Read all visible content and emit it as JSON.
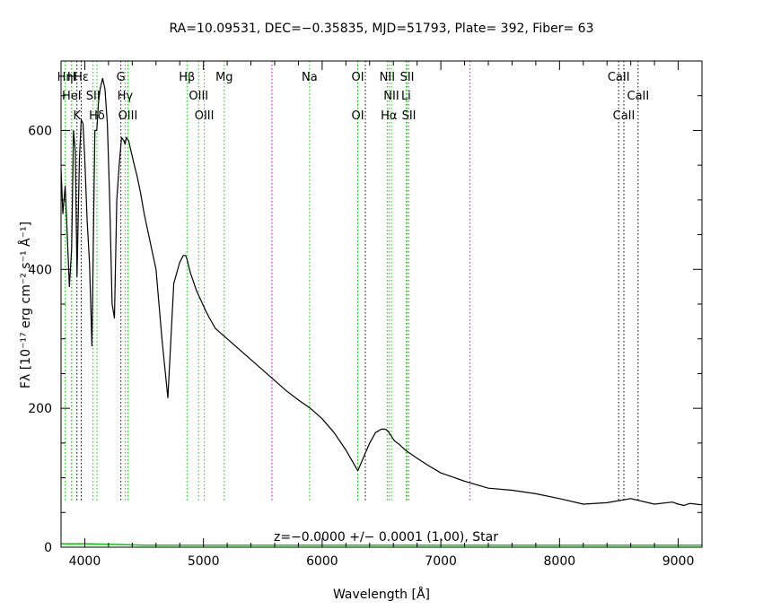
{
  "chart_data": {
    "type": "line",
    "title": "RA=10.09531, DEC=−0.35835, MJD=51793, Plate=  392, Fiber=  63",
    "xlabel": "Wavelength [Å]",
    "ylabel": "Fλ [10⁻¹⁷ erg cm⁻² s⁻¹ Å⁻¹]",
    "xlim": [
      3800,
      9200
    ],
    "ylim": [
      0,
      700
    ],
    "xticks": [
      4000,
      5000,
      6000,
      7000,
      8000,
      9000
    ],
    "yticks": [
      0,
      200,
      400,
      600
    ],
    "annotation": "z=−0.0000 +/− 0.0001 (1.00), Star",
    "series": [
      {
        "color": "#000000",
        "x": [
          3800,
          3815,
          3835,
          3850,
          3870,
          3889,
          3905,
          3920,
          3935,
          3955,
          3970,
          3985,
          4000,
          4020,
          4040,
          4060,
          4085,
          4101,
          4115,
          4130,
          4150,
          4170,
          4190,
          4210,
          4230,
          4250,
          4270,
          4290,
          4310,
          4330,
          4340,
          4350,
          4370,
          4390,
          4410,
          4440,
          4470,
          4500,
          4550,
          4600,
          4650,
          4700,
          4750,
          4800,
          4830,
          4850,
          4861,
          4875,
          4890,
          4910,
          4940,
          4980,
          5020,
          5050,
          5100,
          5200,
          5300,
          5400,
          5500,
          5600,
          5700,
          5800,
          5900,
          6000,
          6100,
          6200,
          6300,
          6400,
          6450,
          6500,
          6530,
          6550,
          6563,
          6575,
          6590,
          6610,
          6650,
          6700,
          6800,
          6900,
          7000,
          7200,
          7400,
          7600,
          7800,
          8000,
          8200,
          8400,
          8600,
          8800,
          8950,
          9000,
          9050,
          9080,
          9100,
          9150,
          9200
        ],
        "y": [
          545,
          480,
          520,
          460,
          375,
          430,
          600,
          570,
          390,
          560,
          615,
          610,
          560,
          470,
          410,
          290,
          600,
          600,
          640,
          660,
          675,
          660,
          610,
          500,
          350,
          330,
          500,
          550,
          590,
          585,
          580,
          590,
          585,
          570,
          555,
          535,
          510,
          480,
          440,
          400,
          300,
          215,
          380,
          410,
          420,
          420,
          415,
          405,
          395,
          385,
          370,
          355,
          340,
          330,
          315,
          300,
          285,
          270,
          255,
          240,
          225,
          212,
          200,
          185,
          165,
          140,
          110,
          150,
          165,
          170,
          170,
          168,
          165,
          162,
          158,
          153,
          148,
          140,
          128,
          117,
          107,
          95,
          85,
          82,
          77,
          70,
          62,
          64,
          70,
          62,
          65,
          62,
          60,
          62,
          63,
          62,
          61
        ]
      },
      {
        "color": "#00cc00",
        "x": [
          3800,
          4000,
          4500,
          5000,
          5500,
          6000,
          6500,
          7000,
          8000,
          9000,
          9200
        ],
        "y": [
          5,
          5,
          3,
          3,
          3,
          3,
          3,
          3,
          3,
          3,
          3
        ]
      }
    ],
    "lines": [
      {
        "wavelength": 3835,
        "color": "#00cc00",
        "label": "Hη",
        "row": 0
      },
      {
        "wavelength": 3889,
        "color": "#00cc00",
        "label": "H",
        "row": 0
      },
      {
        "wavelength": 3889,
        "color": "#00cc00",
        "label": "HeI",
        "row": 1
      },
      {
        "wavelength": 3934,
        "color": "#000000",
        "label": "K",
        "row": 2
      },
      {
        "wavelength": 3970,
        "color": "#000000",
        "label": "Hε",
        "row": 0
      },
      {
        "wavelength": 4070,
        "color": "#00cc00",
        "label": "SII",
        "row": 1
      },
      {
        "wavelength": 4102,
        "color": "#00cc00",
        "label": "Hδ",
        "row": 2
      },
      {
        "wavelength": 4304,
        "color": "#000000",
        "label": "G",
        "row": 0
      },
      {
        "wavelength": 4340,
        "color": "#00cc00",
        "label": "Hγ",
        "row": 1
      },
      {
        "wavelength": 4363,
        "color": "#00cc00",
        "label": "OIII",
        "row": 2
      },
      {
        "wavelength": 4861,
        "color": "#00cc00",
        "label": "Hβ",
        "row": 0
      },
      {
        "wavelength": 4959,
        "color": "#00cc00",
        "label": "OIII",
        "row": 1
      },
      {
        "wavelength": 5007,
        "color": "#00cc00",
        "label": "OIII",
        "row": 2
      },
      {
        "wavelength": 5175,
        "color": "#00cc00",
        "label": "Mg",
        "row": 0
      },
      {
        "wavelength": 5577,
        "color": "#cc00cc",
        "label": "",
        "row": 0
      },
      {
        "wavelength": 5894,
        "color": "#00cc00",
        "label": "Na",
        "row": 0
      },
      {
        "wavelength": 6300,
        "color": "#000000",
        "label": "OI",
        "row": 0
      },
      {
        "wavelength": 6300,
        "color": "#00cc00",
        "label": "OI",
        "row": 2
      },
      {
        "wavelength": 6364,
        "color": "#000000",
        "label": "",
        "row": 0
      },
      {
        "wavelength": 6548,
        "color": "#00cc00",
        "label": "NII",
        "row": 0
      },
      {
        "wavelength": 6563,
        "color": "#00cc00",
        "label": "Hα",
        "row": 2
      },
      {
        "wavelength": 6583,
        "color": "#00cc00",
        "label": "NII",
        "row": 1
      },
      {
        "wavelength": 6707,
        "color": "#00cc00",
        "label": "Li",
        "row": 1
      },
      {
        "wavelength": 6716,
        "color": "#00cc00",
        "label": "SII",
        "row": 0
      },
      {
        "wavelength": 6731,
        "color": "#00cc00",
        "label": "SII",
        "row": 2
      },
      {
        "wavelength": 7246,
        "color": "#cc00cc",
        "label": "",
        "row": 0
      },
      {
        "wavelength": 8498,
        "color": "#000000",
        "label": "CaII",
        "row": 0
      },
      {
        "wavelength": 8542,
        "color": "#000000",
        "label": "CaII",
        "row": 2
      },
      {
        "wavelength": 8662,
        "color": "#000000",
        "label": "CaII",
        "row": 1
      }
    ]
  }
}
